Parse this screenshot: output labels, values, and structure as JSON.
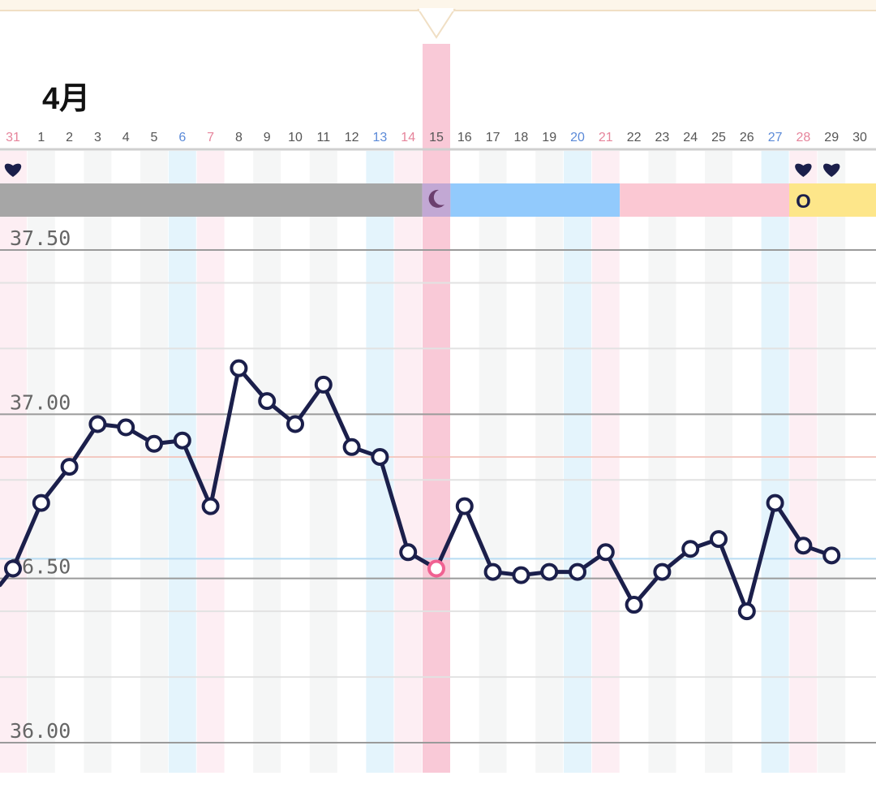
{
  "header": {
    "month_label": "4月"
  },
  "colors": {
    "line": "#1b1f4b",
    "highlight": "#f06292",
    "selected_band": "#f9c9d7",
    "weekend_sat": "#e4f4fc",
    "weekend_sun": "#fdeef3",
    "grid_alt": "#f5f6f6",
    "period": "#a6a6a6",
    "follicular": "#92cafc",
    "luteal": "#fbc8d3",
    "ovulation": "#fde68a",
    "sat_text": "#5b8ad8",
    "sun_text": "#e6849b",
    "day_text": "#555555"
  },
  "selected_day": "15",
  "chart_data": {
    "type": "line",
    "x": [
      "31",
      "1",
      "2",
      "3",
      "4",
      "5",
      "6",
      "7",
      "8",
      "9",
      "10",
      "11",
      "12",
      "13",
      "14",
      "15",
      "16",
      "17",
      "18",
      "19",
      "20",
      "21",
      "22",
      "23",
      "24",
      "25",
      "26",
      "27",
      "28",
      "29",
      "30"
    ],
    "day_types": [
      "sun",
      "",
      "",
      "",
      "",
      "",
      "sat",
      "sun",
      "",
      "",
      "",
      "",
      "",
      "sat",
      "sun",
      "",
      "",
      "",
      "",
      "",
      "sat",
      "sun",
      "",
      "",
      "",
      "",
      "",
      "sat",
      "sun",
      "",
      ""
    ],
    "values": [
      36.53,
      36.73,
      36.84,
      36.97,
      36.96,
      36.91,
      36.92,
      36.72,
      37.14,
      37.04,
      36.97,
      37.09,
      36.9,
      36.87,
      36.58,
      36.53,
      36.72,
      36.52,
      36.51,
      36.52,
      36.52,
      36.58,
      36.42,
      36.52,
      36.59,
      36.62,
      36.4,
      36.73,
      36.6,
      36.57,
      null
    ],
    "lead_in_value": 36.48,
    "highlight_index": 15,
    "ylim": [
      35.97,
      37.58
    ],
    "y_tick_labels": [
      {
        "value": 37.5,
        "label": "37.50"
      },
      {
        "value": 37.0,
        "label": "37.00"
      },
      {
        "value": 36.5,
        "label": "36.50"
      },
      {
        "value": 36.0,
        "label": "36.00"
      }
    ],
    "minor_grid": [
      37.4,
      37.2,
      36.8,
      36.4,
      36.2
    ],
    "reference_lines": [
      {
        "value": 36.87,
        "color": "#f3c9c2"
      },
      {
        "value": 36.56,
        "color": "#b9dcf3"
      }
    ],
    "phases": [
      {
        "start": 0,
        "end": 14,
        "color": "#a6a6a6",
        "label": ""
      },
      {
        "start": 15,
        "end": 15,
        "color": "#c2a8d4",
        "label": ""
      },
      {
        "start": 16,
        "end": 21,
        "color": "#92cafc",
        "label": ""
      },
      {
        "start": 22,
        "end": 27,
        "color": "#fbc8d3",
        "label": ""
      },
      {
        "start": 28,
        "end": 30,
        "color": "#fde68a",
        "label": "O"
      }
    ],
    "moon_index": 15,
    "hearts": [
      0,
      28,
      29
    ]
  }
}
